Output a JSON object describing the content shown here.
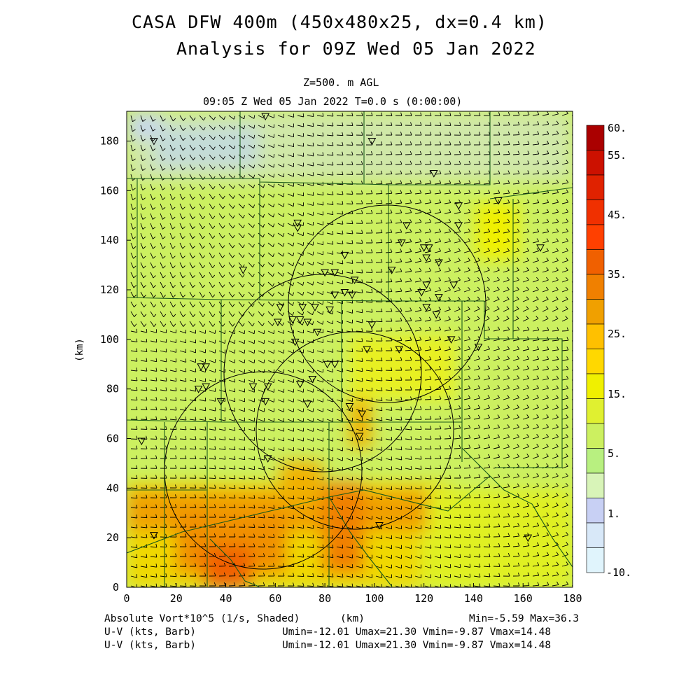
{
  "header": {
    "title_line1": "CASA DFW 400m (450x480x25, dx=0.4 km)",
    "title_line2": "Analysis for 09Z Wed 05 Jan 2022",
    "level": "Z=500. m AGL",
    "valid_time": "09:05 Z Wed 05 Jan 2022   T=0.0 s (0:00:00)"
  },
  "chart_data": {
    "type": "heatmap",
    "xlabel": "(km)",
    "ylabel": "(km)",
    "xlim": [
      0,
      180
    ],
    "ylim": [
      0,
      192
    ],
    "x_ticks": [
      "0",
      "20",
      "40",
      "60",
      "80",
      "100",
      "120",
      "140",
      "160",
      "180"
    ],
    "y_ticks": [
      "0",
      "20",
      "40",
      "60",
      "80",
      "100",
      "120",
      "140",
      "160",
      "180"
    ],
    "colorbar": {
      "labels": [
        "60.",
        "55.",
        "45.",
        "35.",
        "25.",
        "15.",
        "5.",
        "1.",
        "-10."
      ],
      "colors": [
        "#aa0000",
        "#cc1100",
        "#e02200",
        "#f03000",
        "#ff4000",
        "#f06000",
        "#f08000",
        "#f0a000",
        "#ffc000",
        "#ffd800",
        "#f0f000",
        "#e0f030",
        "#ccf060",
        "#b8f080",
        "#d8f4b8",
        "#c8d0f4",
        "#d8e8f8",
        "#e0f4fc"
      ]
    },
    "radar_rings": [
      {
        "cx": 55,
        "cy": 47,
        "r": 40
      },
      {
        "cx": 92,
        "cy": 63,
        "r": 40
      },
      {
        "cx": 79,
        "cy": 86,
        "r": 40
      },
      {
        "cx": 106,
        "cy": 114,
        "r": 40
      }
    ],
    "sites": [
      [
        11,
        180
      ],
      [
        56,
        190
      ],
      [
        99,
        180
      ],
      [
        124,
        167
      ],
      [
        150,
        156
      ],
      [
        134,
        154
      ],
      [
        69,
        147
      ],
      [
        69,
        145
      ],
      [
        113,
        146
      ],
      [
        134,
        146
      ],
      [
        167,
        137
      ],
      [
        111,
        139
      ],
      [
        120,
        137
      ],
      [
        122,
        137
      ],
      [
        121,
        133
      ],
      [
        126,
        131
      ],
      [
        88,
        134
      ],
      [
        107,
        128
      ],
      [
        47,
        128
      ],
      [
        80,
        127
      ],
      [
        84,
        127
      ],
      [
        92,
        124
      ],
      [
        132,
        122
      ],
      [
        121,
        122
      ],
      [
        119,
        119
      ],
      [
        88,
        119
      ],
      [
        84,
        118
      ],
      [
        91,
        118
      ],
      [
        126,
        117
      ],
      [
        76,
        113
      ],
      [
        62,
        113
      ],
      [
        71,
        113
      ],
      [
        82,
        112
      ],
      [
        121,
        113
      ],
      [
        125,
        110
      ],
      [
        70,
        108
      ],
      [
        67,
        108
      ],
      [
        61,
        107
      ],
      [
        73,
        107
      ],
      [
        77,
        103
      ],
      [
        110,
        96
      ],
      [
        99,
        106
      ],
      [
        68,
        99
      ],
      [
        97,
        96
      ],
      [
        131,
        100
      ],
      [
        142,
        97
      ],
      [
        81,
        90
      ],
      [
        84,
        90
      ],
      [
        75,
        84
      ],
      [
        70,
        82
      ],
      [
        32,
        89
      ],
      [
        30,
        89
      ],
      [
        29,
        80
      ],
      [
        32,
        81
      ],
      [
        57,
        81
      ],
      [
        51,
        81
      ],
      [
        38,
        75
      ],
      [
        56,
        75
      ],
      [
        73,
        74
      ],
      [
        90,
        73
      ],
      [
        95,
        70
      ],
      [
        94,
        61
      ],
      [
        6,
        59
      ],
      [
        57,
        52
      ],
      [
        11,
        21
      ],
      [
        102,
        25
      ],
      [
        162,
        20
      ]
    ],
    "stats_minmax": "Min=-5.59 Max=36.3"
  },
  "footer": {
    "field_label": "Absolute Vort*10^5 (1/s, Shaded)",
    "xunit": "(km)",
    "wind1_label": "U-V (kts, Barb)",
    "wind2_label": "U-V (kts, Barb)",
    "wind1_stats": "Umin=-12.01 Umax=21.30 Vmin=-9.87 Vmax=14.48",
    "wind2_stats": "Umin=-12.01 Umax=21.30 Vmin=-9.87 Vmax=14.48"
  }
}
